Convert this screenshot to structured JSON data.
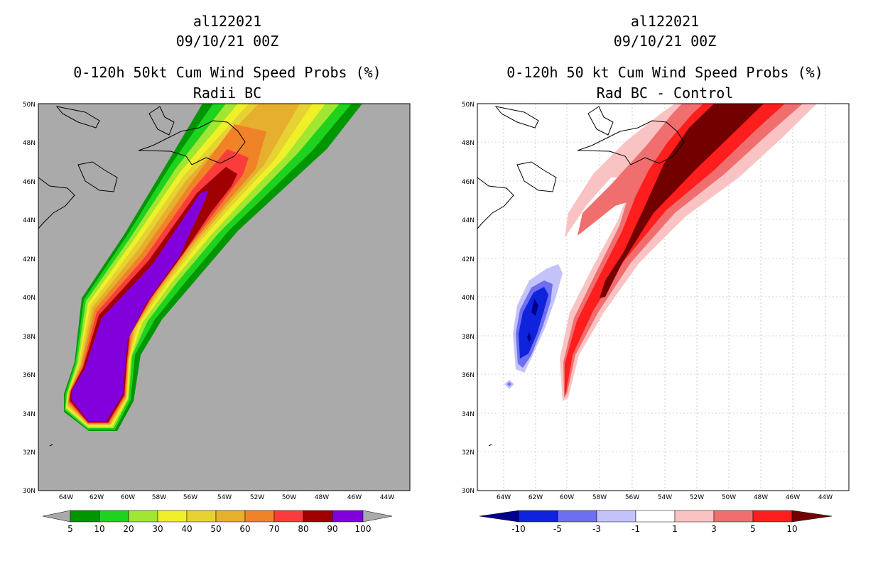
{
  "left_panel": {
    "header": {
      "storm_id": "al122021",
      "datetime": "09/10/21 00Z"
    },
    "title": {
      "line1": "0-120h 50kt Cum Wind Speed Probs (%)",
      "line2": "Radii BC"
    },
    "lat_labels": [
      "50N",
      "48N",
      "46N",
      "44N",
      "42N",
      "40N",
      "38N",
      "36N",
      "34N",
      "32N",
      "30N"
    ],
    "lon_labels": [
      "64W",
      "62W",
      "60W",
      "58W",
      "56W",
      "54W",
      "52W",
      "50W",
      "48W",
      "46W",
      "44W"
    ],
    "colorbar": {
      "colors": [
        "#009600",
        "#1ed21e",
        "#a0e632",
        "#f0f028",
        "#e6d232",
        "#e6af2d",
        "#f08228",
        "#fa3c3c",
        "#a00000",
        "#8200dc"
      ],
      "labels": [
        "5",
        "10",
        "20",
        "30",
        "40",
        "50",
        "60",
        "70",
        "80",
        "90",
        "100"
      ]
    }
  },
  "right_panel": {
    "header": {
      "storm_id": "al122021",
      "datetime": "09/10/21 00Z"
    },
    "title": {
      "line1": "0-120h 50 kt Cum Wind Speed Probs (%)",
      "line2": "Rad BC - Control"
    },
    "lat_labels": [
      "50N",
      "48N",
      "46N",
      "44N",
      "42N",
      "40N",
      "38N",
      "36N",
      "34N",
      "32N",
      "30N"
    ],
    "lon_labels": [
      "64W",
      "62W",
      "60W",
      "58W",
      "56W",
      "54W",
      "52W",
      "50W",
      "48W",
      "46W",
      "44W"
    ],
    "colorbar": {
      "colors": [
        "#00008c",
        "#0f23dc",
        "#6e6ef0",
        "#c3c3fa",
        "#ffffff",
        "#fac3c3",
        "#f06e6e",
        "#ff1e1e",
        "#730000"
      ],
      "labels": [
        "-10",
        "-5",
        "-3",
        "-1",
        "1",
        "3",
        "5",
        "10"
      ]
    }
  },
  "colors": {
    "ocean_left": "#aaaaaa",
    "ocean_right": "#ffffff",
    "coast": "#000000"
  }
}
